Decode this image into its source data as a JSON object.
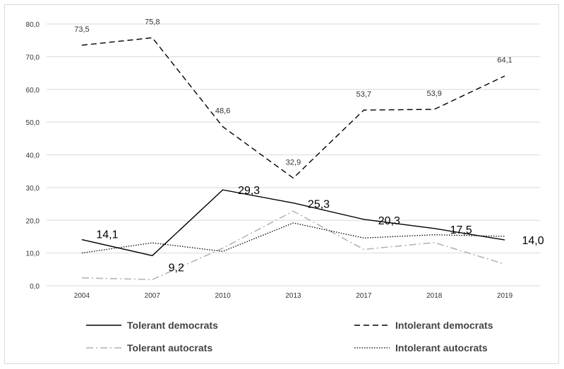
{
  "chart_data": {
    "type": "line",
    "categories": [
      "2004",
      "2007",
      "2010",
      "2013",
      "2017",
      "2018",
      "2019"
    ],
    "ylim": [
      0,
      80
    ],
    "yticks": [
      "0,0",
      "10,0",
      "20,0",
      "30,0",
      "40,0",
      "50,0",
      "60,0",
      "70,0",
      "80,0"
    ],
    "grid": true,
    "legend_position": "bottom",
    "series": [
      {
        "name": "Tolerant democrats",
        "values": [
          14.1,
          9.2,
          29.3,
          25.3,
          20.3,
          17.5,
          14.0
        ],
        "labels": [
          "14,1",
          "9,2",
          "29,3",
          "25,3",
          "20,3",
          "17,5",
          "14,0"
        ],
        "style": "solid",
        "color": "#000000"
      },
      {
        "name": "Intolerant democrats",
        "values": [
          73.5,
          75.8,
          48.6,
          32.9,
          53.7,
          53.9,
          64.1
        ],
        "labels": [
          "73,5",
          "75,8",
          "48,6",
          "32,9",
          "53,7",
          "53,9",
          "64,1"
        ],
        "style": "dashed",
        "color": "#000000"
      },
      {
        "name": "Tolerant autocrats",
        "values": [
          2.4,
          1.9,
          11.5,
          22.8,
          11.1,
          13.2,
          6.6
        ],
        "style": "dashdot",
        "color": "#b0b0b0"
      },
      {
        "name": "Intolerant autocrats",
        "values": [
          10.0,
          13.1,
          10.5,
          19.2,
          14.6,
          15.6,
          15.1
        ],
        "style": "dotted",
        "color": "#000000"
      }
    ]
  }
}
